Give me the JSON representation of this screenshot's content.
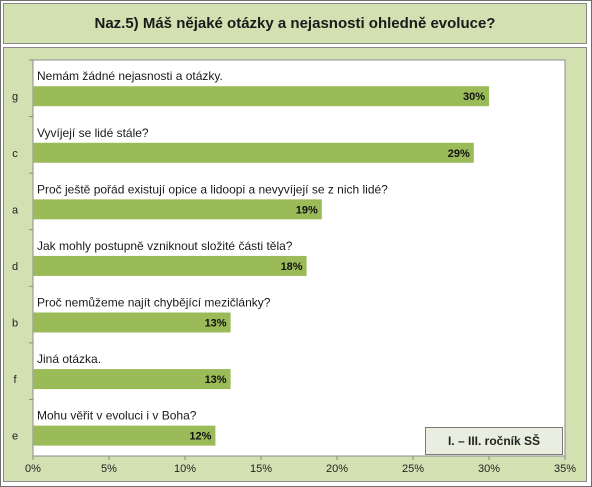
{
  "chart_data": {
    "type": "bar",
    "orientation": "horizontal",
    "title": "Naz.5) Máš nějaké otázky a nejasnosti ohledně evoluce?",
    "note": "I. – III. ročník SŠ",
    "xlim": [
      0,
      35
    ],
    "xticks": [
      0,
      5,
      10,
      15,
      20,
      25,
      30,
      35
    ],
    "xtick_suffix": "%",
    "grid": false,
    "bar_color": "#9bbb59",
    "items": [
      {
        "code": "g",
        "label": "Nemám žádné nejasnosti a otázky.",
        "value": 30,
        "value_label": "30%"
      },
      {
        "code": "c",
        "label": "Vyvíjejí se lidé stále?",
        "value": 29,
        "value_label": "29%"
      },
      {
        "code": "a",
        "label": "Proč ještě pořád existují opice a lidoopi a nevyvíjejí se z nich lidé?",
        "value": 19,
        "value_label": "19%"
      },
      {
        "code": "d",
        "label": "Jak mohly postupně vzniknout složité části těla?",
        "value": 18,
        "value_label": "18%"
      },
      {
        "code": "b",
        "label": "Proč nemůžeme najít chybějící mezičlánky?",
        "value": 13,
        "value_label": "13%"
      },
      {
        "code": "f",
        "label": "Jiná otázka.",
        "value": 13,
        "value_label": "13%"
      },
      {
        "code": "e",
        "label": "Mohu věřit v evoluci i v Boha?",
        "value": 12,
        "value_label": "12%"
      }
    ]
  }
}
